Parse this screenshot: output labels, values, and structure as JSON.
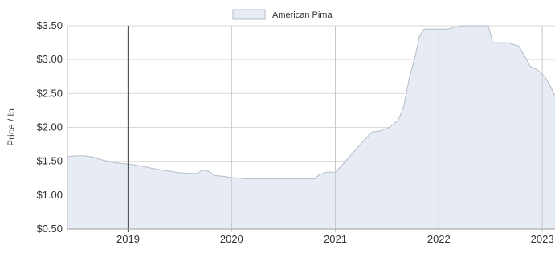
{
  "chart_data": {
    "type": "area",
    "title": "",
    "xlabel": "",
    "ylabel": "Price / lb",
    "legend_position": "top-center",
    "grid": true,
    "series": [
      {
        "name": "American Pima",
        "fill_color": "#e6ebf4",
        "line_color": "#b4bcc8",
        "points": [
          [
            "2018-06-01",
            1.57
          ],
          [
            "2018-07-01",
            1.58
          ],
          [
            "2018-08-01",
            1.58
          ],
          [
            "2018-09-01",
            1.56
          ],
          [
            "2018-10-01",
            1.52
          ],
          [
            "2018-11-01",
            1.49
          ],
          [
            "2018-12-01",
            1.47
          ],
          [
            "2019-01-01",
            1.46
          ],
          [
            "2019-02-01",
            1.44
          ],
          [
            "2019-03-01",
            1.42
          ],
          [
            "2019-04-01",
            1.39
          ],
          [
            "2019-05-01",
            1.37
          ],
          [
            "2019-06-01",
            1.35
          ],
          [
            "2019-07-01",
            1.33
          ],
          [
            "2019-08-01",
            1.32
          ],
          [
            "2019-09-01",
            1.32
          ],
          [
            "2019-09-20",
            1.37
          ],
          [
            "2019-10-15",
            1.35
          ],
          [
            "2019-11-01",
            1.29
          ],
          [
            "2019-12-01",
            1.28
          ],
          [
            "2020-01-01",
            1.26
          ],
          [
            "2020-02-01",
            1.25
          ],
          [
            "2020-03-01",
            1.24
          ],
          [
            "2020-06-01",
            1.24
          ],
          [
            "2020-09-01",
            1.24
          ],
          [
            "2020-10-20",
            1.24
          ],
          [
            "2020-11-05",
            1.3
          ],
          [
            "2020-12-01",
            1.34
          ],
          [
            "2021-01-01",
            1.34
          ],
          [
            "2021-01-20",
            1.42
          ],
          [
            "2021-02-10",
            1.52
          ],
          [
            "2021-03-10",
            1.65
          ],
          [
            "2021-04-10",
            1.8
          ],
          [
            "2021-05-10",
            1.93
          ],
          [
            "2021-06-10",
            1.95
          ],
          [
            "2021-07-10",
            2.0
          ],
          [
            "2021-08-10",
            2.1
          ],
          [
            "2021-08-30",
            2.3
          ],
          [
            "2021-09-20",
            2.75
          ],
          [
            "2021-10-10",
            3.05
          ],
          [
            "2021-10-25",
            3.35
          ],
          [
            "2021-11-10",
            3.45
          ],
          [
            "2022-01-01",
            3.45
          ],
          [
            "2022-02-01",
            3.45
          ],
          [
            "2022-03-01",
            3.48
          ],
          [
            "2022-04-01",
            3.5
          ],
          [
            "2022-06-01",
            3.5
          ],
          [
            "2022-06-25",
            3.5
          ],
          [
            "2022-07-10",
            3.25
          ],
          [
            "2022-09-01",
            3.25
          ],
          [
            "2022-10-10",
            3.2
          ],
          [
            "2022-10-31",
            3.05
          ],
          [
            "2022-11-20",
            2.9
          ],
          [
            "2022-12-15",
            2.85
          ],
          [
            "2023-01-10",
            2.75
          ],
          [
            "2023-01-31",
            2.6
          ],
          [
            "2023-02-15",
            2.45
          ]
        ]
      }
    ],
    "x_range": [
      "2018-06-01",
      "2023-02-15"
    ],
    "x_ticks": [
      {
        "date": "2019-01-01",
        "label": "2019"
      },
      {
        "date": "2020-01-01",
        "label": "2020"
      },
      {
        "date": "2021-01-01",
        "label": "2021"
      },
      {
        "date": "2022-01-01",
        "label": "2022"
      },
      {
        "date": "2023-01-01",
        "label": "2023"
      }
    ],
    "y_range": [
      0.5,
      3.5
    ],
    "y_ticks": [
      {
        "value": 0.5,
        "label": "$0.50"
      },
      {
        "value": 1.0,
        "label": "$1.00"
      },
      {
        "value": 1.5,
        "label": "$1.50"
      },
      {
        "value": 2.0,
        "label": "$2.00"
      },
      {
        "value": 2.5,
        "label": "$2.50"
      },
      {
        "value": 3.0,
        "label": "$3.00"
      },
      {
        "value": 3.5,
        "label": "$3.50"
      }
    ]
  }
}
